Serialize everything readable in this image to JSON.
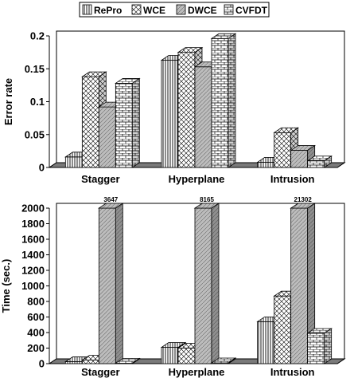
{
  "legend": {
    "entries": [
      "RePro",
      "WCE",
      "DWCE",
      "CVFDT"
    ]
  },
  "chart_data": [
    {
      "type": "bar",
      "title": "",
      "xlabel": "",
      "ylabel": "Error rate",
      "ylim": [
        0,
        0.2
      ],
      "yticks": [
        "0",
        "0.05",
        "0.1",
        "0.15",
        "0.2"
      ],
      "ytick_values": [
        0,
        0.05,
        0.1,
        0.15,
        0.2
      ],
      "categories": [
        "Stagger",
        "Hyperplane",
        "Intrusion"
      ],
      "legend_position": "top",
      "grid": false,
      "series": [
        {
          "name": "RePro",
          "values": [
            0.016,
            0.163,
            0.008
          ]
        },
        {
          "name": "WCE",
          "values": [
            0.138,
            0.175,
            0.053
          ]
        },
        {
          "name": "DWCE",
          "values": [
            0.092,
            0.153,
            0.026
          ]
        },
        {
          "name": "CVFDT",
          "values": [
            0.128,
            0.196,
            0.01
          ]
        }
      ]
    },
    {
      "type": "bar",
      "title": "",
      "xlabel": "",
      "ylabel": "Time (sec.)",
      "ylim": [
        0,
        2000
      ],
      "yticks": [
        "0",
        "200",
        "400",
        "600",
        "800",
        "1000",
        "1200",
        "1400",
        "1600",
        "1800",
        "2000"
      ],
      "ytick_values": [
        0,
        200,
        400,
        600,
        800,
        1000,
        1200,
        1400,
        1600,
        1800,
        2000
      ],
      "categories": [
        "Stagger",
        "Hyperplane",
        "Intrusion"
      ],
      "grid": false,
      "series": [
        {
          "name": "RePro",
          "values": [
            25,
            210,
            540
          ]
        },
        {
          "name": "WCE",
          "values": [
            45,
            200,
            870
          ]
        },
        {
          "name": "DWCE",
          "values": [
            3647,
            8165,
            21302
          ]
        },
        {
          "name": "CVFDT",
          "values": [
            5,
            10,
            390
          ]
        }
      ],
      "data_labels": [
        {
          "series": "DWCE",
          "category": "Stagger",
          "text": "3647"
        },
        {
          "series": "DWCE",
          "category": "Hyperplane",
          "text": "8165"
        },
        {
          "series": "DWCE",
          "category": "Intrusion",
          "text": "21302"
        }
      ]
    }
  ]
}
